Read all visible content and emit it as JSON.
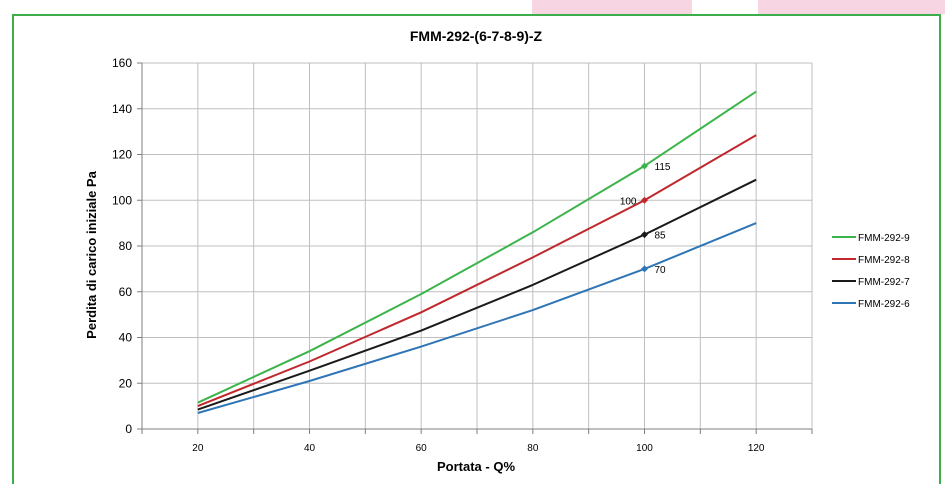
{
  "chart_data": {
    "type": "line",
    "title": "FMM-292-(6-7-8-9)-Z",
    "xlabel": "Portata - Q%",
    "ylabel": "Perdita di carico iniziale Pa",
    "xlim": [
      10,
      130
    ],
    "ylim": [
      0,
      160
    ],
    "x_ticks": [
      20,
      40,
      60,
      80,
      100,
      120
    ],
    "y_ticks": [
      0,
      20,
      40,
      60,
      80,
      100,
      120,
      140,
      160
    ],
    "grid": true,
    "legend_position": "right",
    "series": [
      {
        "name": "FMM-292-9",
        "color": "#3cb44b",
        "x": [
          20,
          40,
          60,
          80,
          100,
          120
        ],
        "y": [
          11.5,
          34,
          59,
          86,
          115,
          147.5
        ]
      },
      {
        "name": "FMM-292-8",
        "color": "#c0282d",
        "x": [
          20,
          40,
          60,
          80,
          100,
          120
        ],
        "y": [
          10,
          29.5,
          51,
          75,
          100,
          128.5
        ]
      },
      {
        "name": "FMM-292-7",
        "color": "#1a1a1a",
        "x": [
          20,
          40,
          60,
          80,
          100,
          120
        ],
        "y": [
          8.5,
          25.5,
          43,
          63,
          85,
          109
        ]
      },
      {
        "name": "FMM-292-6",
        "color": "#2e75b6",
        "x": [
          20,
          40,
          60,
          80,
          100,
          120
        ],
        "y": [
          7,
          21,
          36,
          52,
          70,
          90
        ]
      }
    ],
    "annotations": [
      {
        "series": "FMM-292-9",
        "x": 100,
        "y": 115,
        "label": "115",
        "side": "right"
      },
      {
        "series": "FMM-292-8",
        "x": 100,
        "y": 100,
        "label": "100",
        "side": "left"
      },
      {
        "series": "FMM-292-7",
        "x": 100,
        "y": 85,
        "label": "85",
        "side": "right"
      },
      {
        "series": "FMM-292-6",
        "x": 100,
        "y": 70,
        "label": "70",
        "side": "right"
      }
    ]
  }
}
